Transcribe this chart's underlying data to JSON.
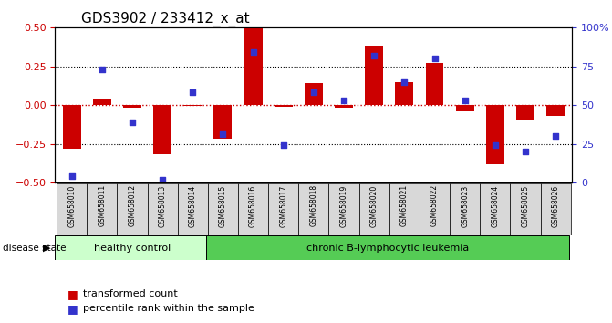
{
  "title": "GDS3902 / 233412_x_at",
  "samples": [
    "GSM658010",
    "GSM658011",
    "GSM658012",
    "GSM658013",
    "GSM658014",
    "GSM658015",
    "GSM658016",
    "GSM658017",
    "GSM658018",
    "GSM658019",
    "GSM658020",
    "GSM658021",
    "GSM658022",
    "GSM658023",
    "GSM658024",
    "GSM658025",
    "GSM658026"
  ],
  "red_values": [
    -0.28,
    0.04,
    -0.02,
    -0.32,
    -0.005,
    -0.22,
    0.5,
    -0.01,
    0.14,
    -0.015,
    0.38,
    0.15,
    0.27,
    -0.04,
    -0.38,
    -0.1,
    -0.07
  ],
  "blue_percentiles": [
    4,
    73,
    39,
    2,
    58,
    31,
    84,
    24,
    58,
    53,
    82,
    65,
    80,
    53,
    24,
    20,
    30
  ],
  "healthy_count": 5,
  "leukemia_count": 12,
  "ylim": [
    -0.5,
    0.5
  ],
  "yticks_red": [
    -0.5,
    -0.25,
    0.0,
    0.25,
    0.5
  ],
  "yticks_blue_vals": [
    0,
    25,
    50,
    75,
    100
  ],
  "yticks_blue_labels": [
    "0",
    "25",
    "50",
    "75",
    "100%"
  ],
  "red_color": "#cc0000",
  "blue_color": "#3333cc",
  "healthy_bg": "#ccffcc",
  "leukemia_bg": "#55cc55",
  "sample_bg": "#d8d8d8",
  "bar_width": 0.6,
  "title_fontsize": 11
}
